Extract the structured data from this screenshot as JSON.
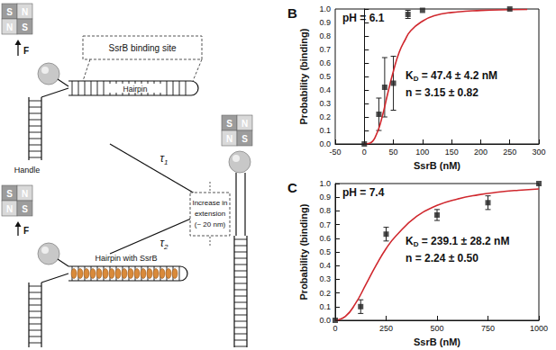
{
  "diagram": {
    "panel": "A",
    "magnet": [
      [
        "S",
        "N"
      ],
      [
        "N",
        "S"
      ]
    ],
    "force": "F",
    "binding_site": "SsrB binding site",
    "hairpin": "Hairpin",
    "handle": "Handle",
    "hairpin_bound": "Hairpin with SsrB",
    "tau1": {
      "text": "τ",
      "sub": "1"
    },
    "tau2": {
      "text": "τ",
      "sub": "2"
    },
    "extension": [
      "Increase in",
      "extension",
      "(~ 20 nm)"
    ]
  },
  "chart_data": [
    {
      "type": "scatter",
      "title": "B",
      "xlabel": "SsrB (nM)",
      "ylabel": "Probability (binding)",
      "xlim": [
        -50,
        300
      ],
      "xticks": [
        -50,
        0,
        50,
        100,
        150,
        200,
        250,
        300
      ],
      "ylim": [
        0,
        1
      ],
      "yticks": [
        {
          "value": 0,
          "label": "0.0"
        },
        {
          "value": 0.1,
          "label": "0.1"
        },
        {
          "value": 0.2,
          "label": "0.2"
        },
        {
          "value": 0.3,
          "label": "0.3"
        },
        {
          "value": 0.4,
          "label": "0.4"
        },
        {
          "value": 0.5,
          "label": "0.5"
        },
        {
          "value": 0.6,
          "label": "0.6"
        },
        {
          "value": 0.7,
          "label": "0.7"
        },
        {
          "value": 0.8,
          "label": "0.8"
        },
        {
          "value": 0.9,
          "label": "0.9"
        },
        {
          "value": 1,
          "label": "1.0"
        }
      ],
      "grid": false,
      "annotations": [
        {
          "segments": [
            {
              "text": "pH = 6.1"
            }
          ]
        },
        {
          "segments": [
            {
              "text": "K"
            },
            {
              "text": "D",
              "sub": true
            },
            {
              "text": " = 47.4 ± 4.2 nM"
            }
          ]
        },
        {
          "segments": [
            {
              "text": "n = 3.15 ± 0.82"
            }
          ]
        }
      ],
      "series": [
        {
          "type": "scatter",
          "marker": "square",
          "color": "#222222",
          "x": [
            0,
            25,
            35,
            50,
            75,
            100,
            250
          ],
          "values": [
            0,
            0.22,
            0.42,
            0.45,
            0.96,
            0.99,
            1.0
          ],
          "errors": [
            null,
            0.12,
            0.22,
            0.2,
            0.03,
            null,
            null
          ]
        },
        {
          "type": "line",
          "line_style": "solid",
          "color": "#d0282e",
          "x": [
            0,
            10,
            20,
            30,
            40,
            50,
            60,
            70,
            80,
            100,
            120,
            150,
            200,
            250,
            280
          ],
          "values": [
            0,
            0.007,
            0.062,
            0.19,
            0.37,
            0.54,
            0.68,
            0.77,
            0.84,
            0.91,
            0.95,
            0.974,
            0.989,
            0.995,
            0.997
          ]
        }
      ]
    },
    {
      "type": "scatter",
      "title": "C",
      "xlabel": "SsrB (nM)",
      "ylabel": "Probability (binding)",
      "xlim": [
        0,
        1000
      ],
      "xticks": [
        0,
        250,
        500,
        750,
        1000
      ],
      "ylim": [
        0,
        1
      ],
      "yticks": [
        {
          "value": 0,
          "label": "0.0"
        },
        {
          "value": 0.1,
          "label": "0.1"
        },
        {
          "value": 0.2,
          "label": "0.2"
        },
        {
          "value": 0.3,
          "label": "0.3"
        },
        {
          "value": 0.4,
          "label": "0.4"
        },
        {
          "value": 0.5,
          "label": "0.5"
        },
        {
          "value": 0.6,
          "label": "0.6"
        },
        {
          "value": 0.7,
          "label": "0.7"
        },
        {
          "value": 0.8,
          "label": "0.8"
        },
        {
          "value": 0.9,
          "label": "0.9"
        },
        {
          "value": 1,
          "label": "1.0"
        }
      ],
      "grid": false,
      "annotations": [
        {
          "segments": [
            {
              "text": "pH = 7.4"
            }
          ]
        },
        {
          "segments": [
            {
              "text": "K"
            },
            {
              "text": "D",
              "sub": true
            },
            {
              "text": " = 239.1 ± 28.2 nM"
            }
          ]
        },
        {
          "segments": [
            {
              "text": "n = 2.24 ± 0.50"
            }
          ]
        }
      ],
      "series": [
        {
          "type": "scatter",
          "marker": "square",
          "color": "#222222",
          "x": [
            0,
            125,
            250,
            500,
            750,
            1000
          ],
          "values": [
            0,
            0.1,
            0.63,
            0.77,
            0.86,
            1.0
          ],
          "errors": [
            null,
            0.05,
            0.05,
            0.04,
            0.05,
            null
          ]
        },
        {
          "type": "line",
          "line_style": "solid",
          "color": "#d0282e",
          "x": [
            0,
            50,
            100,
            150,
            200,
            250,
            300,
            400,
            500,
            600,
            700,
            800,
            900,
            1000
          ],
          "values": [
            0,
            0.029,
            0.124,
            0.26,
            0.4,
            0.525,
            0.62,
            0.76,
            0.84,
            0.887,
            0.917,
            0.937,
            0.951,
            0.961
          ]
        }
      ]
    }
  ]
}
